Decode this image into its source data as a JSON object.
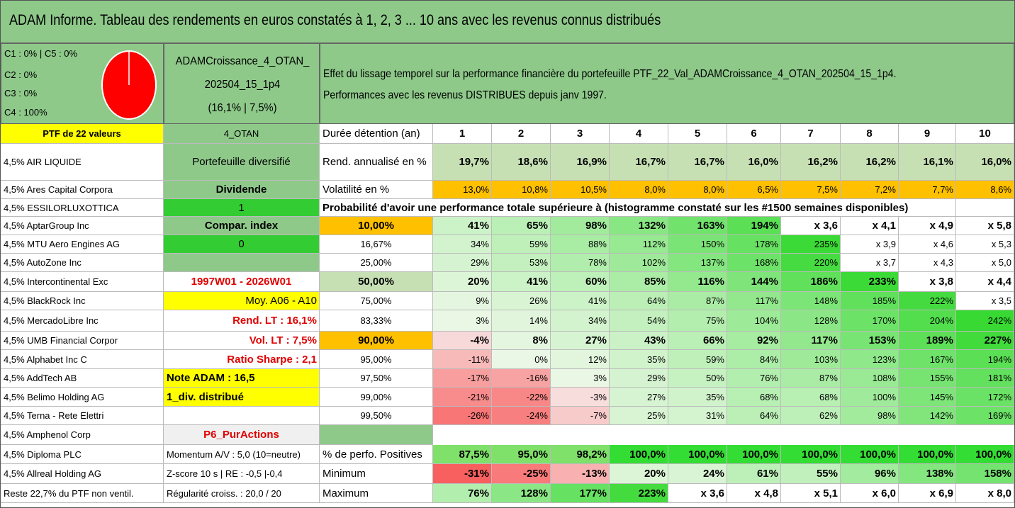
{
  "title": "ADAM Informe. Tableau des rendements en euros constatés à 1, 2, 3 ... 10 ans avec les revenus connus distribués",
  "allocation": {
    "lines": [
      "C1 : 0% | C5 : 0%",
      "C2 : 0%",
      "C3 : 0%",
      "C4 : 100%"
    ],
    "pie_color": "#ff0000"
  },
  "portfolio_name": [
    "ADAMCroissance_4_OTAN_",
    "202504_15_1p4",
    "(16,1% | 7,5%)"
  ],
  "effect_text": [
    "Effet du lissage temporel sur la performance financière du portefeuille PTF_22_Val_ADAMCroissance_4_OTAN_202504_15_1p4.",
    "Performances avec les revenus DISTRIBUES depuis janv 1997."
  ],
  "header": {
    "ptf": "PTF de 22 valeurs",
    "code": "4_OTAN",
    "duration_label": "Durée détention (an)",
    "years": [
      "1",
      "2",
      "3",
      "4",
      "5",
      "6",
      "7",
      "8",
      "9",
      "10"
    ]
  },
  "holdings": [
    "4,5% AIR LIQUIDE",
    "4,5% Ares Capital Corpora",
    "4,5% ESSILORLUXOTTICA",
    "4,5% AptarGroup Inc",
    "4,5% MTU Aero Engines AG",
    "4,5% AutoZone Inc",
    "4,5% Intercontinental Exc",
    "4,5% BlackRock Inc",
    "4,5% MercadoLibre Inc",
    "4,5% UMB Financial Corpor",
    "4,5% Alphabet Inc C",
    "4,5% AddTech AB",
    "4,5% Belimo Holding AG",
    "4,5% Terna - Rete Elettri",
    "4,5% Amphenol Corp",
    "4,5% Diploma PLC",
    "4,5% Allreal Holding AG",
    "Reste 22,7% du PTF non ventil."
  ],
  "info_column": [
    "Portefeuille diversifié",
    "Dividende",
    "1",
    "Compar. index",
    "0",
    "",
    "1997W01 - 2026W01",
    "Moy. A06 - A10",
    "Rend. LT : 16,1%",
    "Vol. LT : 7,5%",
    "Ratio Sharpe : 2,1",
    "Note ADAM : 16,5",
    "1_div. distribué",
    "",
    "P6_PurActions",
    "Momentum A/V : 5,0 (10=neutre)",
    "Z-score 10 s | RE : -0,5 |-0,4",
    "Régularité croiss. : 20,0 / 20"
  ],
  "rend_label": "Rend. annualisé en %",
  "rend_values": [
    "19,7%",
    "18,6%",
    "16,9%",
    "16,7%",
    "16,7%",
    "16,0%",
    "16,2%",
    "16,2%",
    "16,1%",
    "16,0%"
  ],
  "vol_label": "Volatilité en %",
  "vol_values": [
    "13,0%",
    "10,8%",
    "10,5%",
    "8,0%",
    "8,0%",
    "6,5%",
    "7,5%",
    "7,2%",
    "7,7%",
    "8,6%"
  ],
  "prob_title": "Probabilité d'avoir une performance totale supérieure à (histogramme constaté sur les #1500 semaines disponibles)",
  "prob_rows": [
    {
      "p": "10,00%",
      "v": [
        "41%",
        "65%",
        "98%",
        "132%",
        "163%",
        "194%",
        "x 3,6",
        "x 4,1",
        "x 4,9",
        "x 5,8"
      ]
    },
    {
      "p": "16,67%",
      "v": [
        "34%",
        "59%",
        "88%",
        "112%",
        "150%",
        "178%",
        "235%",
        "x 3,9",
        "x 4,6",
        "x 5,3"
      ]
    },
    {
      "p": "25,00%",
      "v": [
        "29%",
        "53%",
        "78%",
        "102%",
        "137%",
        "168%",
        "220%",
        "x 3,7",
        "x 4,3",
        "x 5,0"
      ]
    },
    {
      "p": "50,00%",
      "v": [
        "20%",
        "41%",
        "60%",
        "85%",
        "116%",
        "144%",
        "186%",
        "233%",
        "x 3,8",
        "x 4,4"
      ]
    },
    {
      "p": "75,00%",
      "v": [
        "9%",
        "26%",
        "41%",
        "64%",
        "87%",
        "117%",
        "148%",
        "185%",
        "222%",
        "x 3,5"
      ]
    },
    {
      "p": "83,33%",
      "v": [
        "3%",
        "14%",
        "34%",
        "54%",
        "75%",
        "104%",
        "128%",
        "170%",
        "204%",
        "242%"
      ]
    },
    {
      "p": "90,00%",
      "v": [
        "-4%",
        "8%",
        "27%",
        "43%",
        "66%",
        "92%",
        "117%",
        "153%",
        "189%",
        "227%"
      ]
    },
    {
      "p": "95,00%",
      "v": [
        "-11%",
        "0%",
        "12%",
        "35%",
        "59%",
        "84%",
        "103%",
        "123%",
        "167%",
        "194%"
      ]
    },
    {
      "p": "97,50%",
      "v": [
        "-17%",
        "-16%",
        "3%",
        "29%",
        "50%",
        "76%",
        "87%",
        "108%",
        "155%",
        "181%"
      ]
    },
    {
      "p": "99,00%",
      "v": [
        "-21%",
        "-22%",
        "-3%",
        "27%",
        "35%",
        "68%",
        "68%",
        "100%",
        "145%",
        "172%"
      ]
    },
    {
      "p": "99,50%",
      "v": [
        "-26%",
        "-24%",
        "-7%",
        "25%",
        "31%",
        "64%",
        "62%",
        "98%",
        "142%",
        "169%"
      ]
    }
  ],
  "pos_label": "% de perfo. Positives",
  "pos_values": [
    "87,5%",
    "95,0%",
    "98,2%",
    "100,0%",
    "100,0%",
    "100,0%",
    "100,0%",
    "100,0%",
    "100,0%",
    "100,0%"
  ],
  "min_label": "Minimum",
  "min_values": [
    "-31%",
    "-25%",
    "-13%",
    "20%",
    "24%",
    "61%",
    "55%",
    "96%",
    "138%",
    "158%"
  ],
  "max_label": "Maximum",
  "max_values": [
    "76%",
    "128%",
    "177%",
    "223%",
    "x 3,6",
    "x 4,8",
    "x 5,1",
    "x 6,0",
    "x 6,9",
    "x 8,0"
  ]
}
